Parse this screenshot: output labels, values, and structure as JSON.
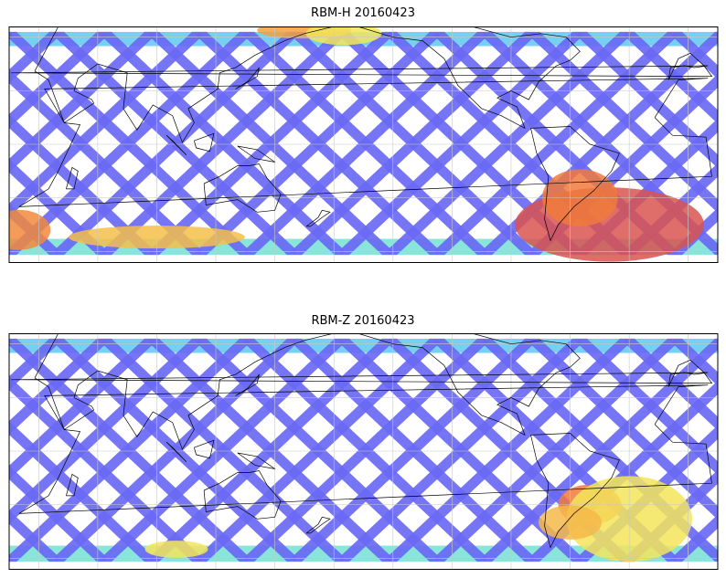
{
  "panels": [
    {
      "title": "RBM-H 20160423",
      "swath_color": "#6a6af5",
      "hot_regions": [
        {
          "lon": -40,
          "lat": -45,
          "rx": 30,
          "ry": 13,
          "color": "#d9534f"
        },
        {
          "lon": -55,
          "lat": -30,
          "rx": 12,
          "ry": 10,
          "color": "#f07a3c"
        },
        {
          "lon": 20,
          "lat": -48,
          "rx": 10,
          "ry": 7,
          "color": "#f28a3c"
        },
        {
          "lon": 165,
          "lat": 64,
          "rx": 15,
          "ry": 3,
          "color": "#f2a040"
        },
        {
          "lon": -175,
          "lat": 62,
          "rx": 12,
          "ry": 4,
          "color": "#f5e55a"
        },
        {
          "lon": 90,
          "lat": -52,
          "rx": 28,
          "ry": 4,
          "color": "#f5c04a"
        }
      ],
      "band_colors": {
        "north": "#5ec8f0",
        "south": "#74e0d2"
      }
    },
    {
      "title": "RBM-Z 20160423",
      "swath_color": "#6a6af5",
      "hot_regions": [
        {
          "lon": -50,
          "lat": -30,
          "rx": 10,
          "ry": 7,
          "color": "#f07a3c"
        },
        {
          "lon": -30,
          "lat": -38,
          "rx": 20,
          "ry": 15,
          "color": "#f5e55a"
        },
        {
          "lon": -60,
          "lat": -40,
          "rx": 10,
          "ry": 6,
          "color": "#f5b84a"
        },
        {
          "lon": 100,
          "lat": -55,
          "rx": 10,
          "ry": 3,
          "color": "#f5e55a"
        }
      ],
      "band_colors": {
        "north": "#5ec8f0",
        "south": "#74e0d2"
      }
    }
  ],
  "map": {
    "lon_range": [
      15,
      375
    ],
    "lat_range": [
      -66,
      66
    ],
    "grid_step": 30
  }
}
